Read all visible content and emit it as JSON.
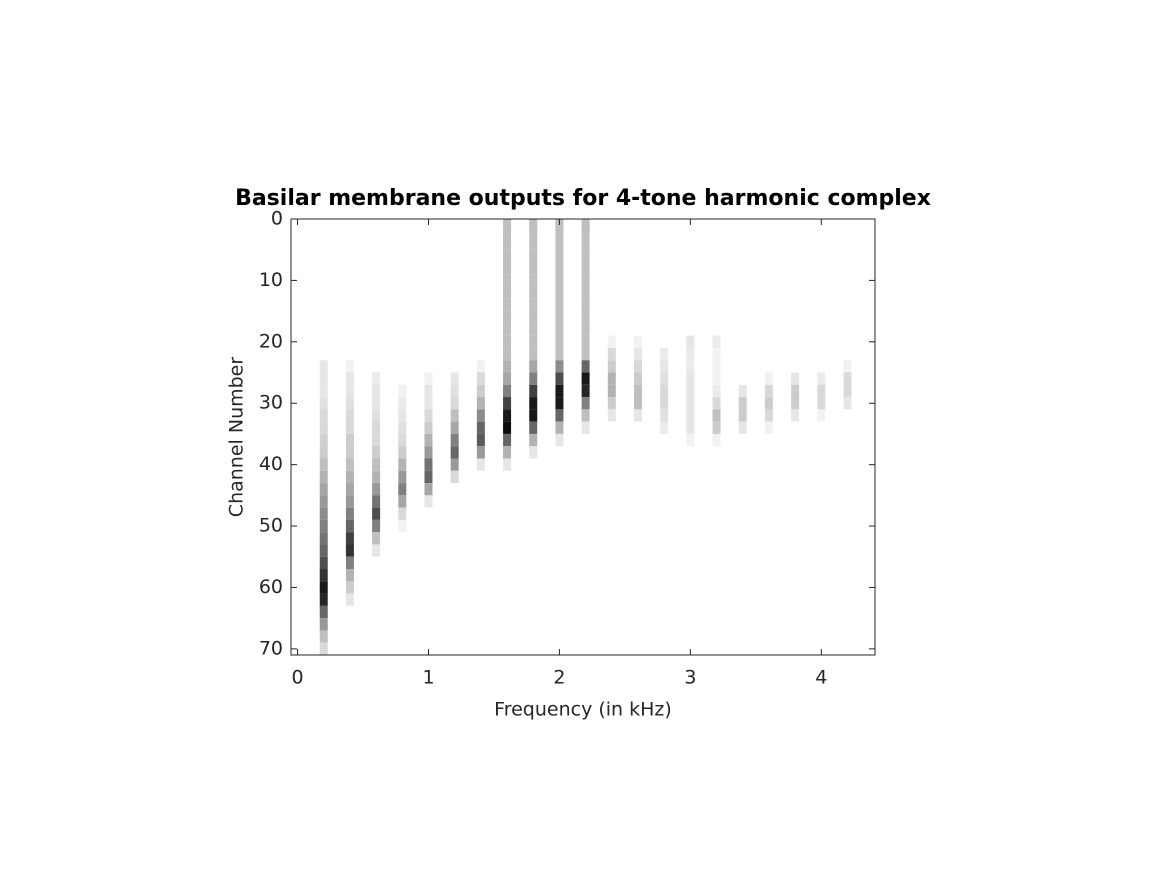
{
  "chart_data": {
    "type": "heatmap",
    "title": "Basilar membrane outputs for 4-tone harmonic complex",
    "xlabel": "Frequency (in kHz)",
    "ylabel": "Channel Number",
    "x": [
      0.2,
      0.4,
      0.6,
      0.8,
      1.0,
      1.2,
      1.4,
      1.6,
      1.8,
      2.0,
      2.2,
      2.4,
      2.6,
      2.8,
      3.0,
      3.2,
      3.4,
      3.6,
      3.8,
      4.0,
      4.2
    ],
    "y": [
      0,
      2,
      4,
      6,
      8,
      10,
      12,
      14,
      16,
      18,
      20,
      22,
      24,
      26,
      28,
      30,
      32,
      34,
      36,
      38,
      40,
      42,
      44,
      46,
      48,
      50,
      52,
      54,
      56,
      58,
      60,
      62,
      64,
      66,
      68,
      70
    ],
    "z": [
      [
        0,
        0,
        0,
        0,
        0,
        0,
        0,
        0,
        0,
        0,
        0,
        0,
        0.1,
        0.1,
        0.1,
        0.12,
        0.15,
        0.15,
        0.18,
        0.2,
        0.25,
        0.3,
        0.35,
        0.4,
        0.45,
        0.5,
        0.55,
        0.6,
        0.7,
        0.8,
        0.9,
        0.85,
        0.6,
        0.4,
        0.25,
        0.15
      ],
      [
        0,
        0,
        0,
        0,
        0,
        0,
        0,
        0,
        0,
        0,
        0,
        0,
        0.05,
        0.1,
        0.1,
        0.12,
        0.15,
        0.15,
        0.2,
        0.2,
        0.25,
        0.3,
        0.35,
        0.4,
        0.5,
        0.6,
        0.75,
        0.8,
        0.5,
        0.3,
        0.2,
        0.1,
        0,
        0,
        0,
        0
      ],
      [
        0,
        0,
        0,
        0,
        0,
        0,
        0,
        0,
        0,
        0,
        0,
        0,
        0,
        0.08,
        0.1,
        0.1,
        0.12,
        0.15,
        0.15,
        0.2,
        0.25,
        0.3,
        0.4,
        0.55,
        0.7,
        0.5,
        0.25,
        0.1,
        0,
        0,
        0,
        0,
        0,
        0,
        0,
        0
      ],
      [
        0,
        0,
        0,
        0,
        0,
        0,
        0,
        0,
        0,
        0,
        0,
        0,
        0,
        0,
        0.05,
        0.08,
        0.1,
        0.12,
        0.15,
        0.2,
        0.3,
        0.4,
        0.5,
        0.35,
        0.15,
        0.05,
        0,
        0,
        0,
        0,
        0,
        0,
        0,
        0,
        0,
        0
      ],
      [
        0,
        0,
        0,
        0,
        0,
        0,
        0,
        0,
        0,
        0,
        0,
        0,
        0,
        0.05,
        0.1,
        0.1,
        0.15,
        0.2,
        0.3,
        0.4,
        0.55,
        0.6,
        0.35,
        0.1,
        0,
        0,
        0,
        0,
        0,
        0,
        0,
        0,
        0,
        0,
        0,
        0
      ],
      [
        0,
        0,
        0,
        0,
        0,
        0,
        0,
        0,
        0,
        0,
        0,
        0,
        0,
        0.1,
        0.12,
        0.15,
        0.25,
        0.35,
        0.5,
        0.6,
        0.4,
        0.15,
        0,
        0,
        0,
        0,
        0,
        0,
        0,
        0,
        0,
        0,
        0,
        0,
        0,
        0
      ],
      [
        0,
        0,
        0,
        0,
        0,
        0,
        0,
        0,
        0,
        0,
        0,
        0,
        0.05,
        0.15,
        0.2,
        0.3,
        0.45,
        0.6,
        0.65,
        0.4,
        0.1,
        0,
        0,
        0,
        0,
        0,
        0,
        0,
        0,
        0,
        0,
        0,
        0,
        0,
        0,
        0
      ],
      [
        0.25,
        0.25,
        0.25,
        0.25,
        0.25,
        0.25,
        0.25,
        0.25,
        0.25,
        0.25,
        0.25,
        0.25,
        0.3,
        0.35,
        0.5,
        0.75,
        0.9,
        0.95,
        0.6,
        0.3,
        0.1,
        0,
        0,
        0,
        0,
        0,
        0,
        0,
        0,
        0,
        0,
        0,
        0,
        0,
        0,
        0
      ],
      [
        0.25,
        0.25,
        0.25,
        0.25,
        0.25,
        0.25,
        0.25,
        0.25,
        0.25,
        0.25,
        0.25,
        0.25,
        0.35,
        0.5,
        0.75,
        0.9,
        0.9,
        0.6,
        0.3,
        0.1,
        0,
        0,
        0,
        0,
        0,
        0,
        0,
        0,
        0,
        0,
        0,
        0,
        0,
        0,
        0,
        0
      ],
      [
        0.25,
        0.25,
        0.25,
        0.25,
        0.25,
        0.25,
        0.25,
        0.25,
        0.25,
        0.25,
        0.25,
        0.25,
        0.45,
        0.7,
        0.9,
        0.9,
        0.6,
        0.3,
        0.1,
        0,
        0,
        0,
        0,
        0,
        0,
        0,
        0,
        0,
        0,
        0,
        0,
        0,
        0,
        0,
        0,
        0
      ],
      [
        0.25,
        0.25,
        0.25,
        0.25,
        0.25,
        0.25,
        0.25,
        0.25,
        0.25,
        0.25,
        0.25,
        0.25,
        0.6,
        0.9,
        0.85,
        0.5,
        0.25,
        0.1,
        0,
        0,
        0,
        0,
        0,
        0,
        0,
        0,
        0,
        0,
        0,
        0,
        0,
        0,
        0,
        0,
        0,
        0
      ],
      [
        0,
        0,
        0,
        0,
        0,
        0,
        0,
        0,
        0,
        0,
        0.05,
        0.15,
        0.2,
        0.3,
        0.3,
        0.2,
        0.1,
        0,
        0,
        0,
        0,
        0,
        0,
        0,
        0,
        0,
        0,
        0,
        0,
        0,
        0,
        0,
        0,
        0,
        0,
        0
      ],
      [
        0,
        0,
        0,
        0,
        0,
        0,
        0,
        0,
        0,
        0,
        0.05,
        0.1,
        0.15,
        0.2,
        0.25,
        0.25,
        0.1,
        0,
        0,
        0,
        0,
        0,
        0,
        0,
        0,
        0,
        0,
        0,
        0,
        0,
        0,
        0,
        0,
        0,
        0,
        0
      ],
      [
        0,
        0,
        0,
        0,
        0,
        0,
        0,
        0,
        0,
        0,
        0,
        0.08,
        0.1,
        0.12,
        0.15,
        0.15,
        0.12,
        0.08,
        0,
        0,
        0,
        0,
        0,
        0,
        0,
        0,
        0,
        0,
        0,
        0,
        0,
        0,
        0,
        0,
        0,
        0
      ],
      [
        0,
        0,
        0,
        0,
        0,
        0,
        0,
        0,
        0,
        0,
        0.1,
        0.08,
        0.08,
        0.1,
        0.1,
        0.1,
        0.1,
        0.1,
        0.05,
        0,
        0,
        0,
        0,
        0,
        0,
        0,
        0,
        0,
        0,
        0,
        0,
        0,
        0,
        0,
        0,
        0
      ],
      [
        0,
        0,
        0,
        0,
        0,
        0,
        0,
        0,
        0,
        0,
        0.08,
        0.05,
        0.05,
        0.05,
        0.08,
        0.15,
        0.25,
        0.2,
        0.05,
        0,
        0,
        0,
        0,
        0,
        0,
        0,
        0,
        0,
        0,
        0,
        0,
        0,
        0,
        0,
        0,
        0
      ],
      [
        0,
        0,
        0,
        0,
        0,
        0,
        0,
        0,
        0,
        0,
        0,
        0,
        0,
        0,
        0.1,
        0.2,
        0.2,
        0.1,
        0,
        0,
        0,
        0,
        0,
        0,
        0,
        0,
        0,
        0,
        0,
        0,
        0,
        0,
        0,
        0,
        0,
        0
      ],
      [
        0,
        0,
        0,
        0,
        0,
        0,
        0,
        0,
        0,
        0,
        0,
        0,
        0,
        0.05,
        0.15,
        0.2,
        0.15,
        0.05,
        0,
        0,
        0,
        0,
        0,
        0,
        0,
        0,
        0,
        0,
        0,
        0,
        0,
        0,
        0,
        0,
        0,
        0
      ],
      [
        0,
        0,
        0,
        0,
        0,
        0,
        0,
        0,
        0,
        0,
        0,
        0,
        0,
        0.1,
        0.2,
        0.2,
        0.1,
        0,
        0,
        0,
        0,
        0,
        0,
        0,
        0,
        0,
        0,
        0,
        0,
        0,
        0,
        0,
        0,
        0,
        0,
        0
      ],
      [
        0,
        0,
        0,
        0,
        0,
        0,
        0,
        0,
        0,
        0,
        0,
        0,
        0,
        0.08,
        0.15,
        0.15,
        0.05,
        0,
        0,
        0,
        0,
        0,
        0,
        0,
        0,
        0,
        0,
        0,
        0,
        0,
        0,
        0,
        0,
        0,
        0,
        0
      ],
      [
        0,
        0,
        0,
        0,
        0,
        0,
        0,
        0,
        0,
        0,
        0,
        0,
        0.05,
        0.15,
        0.15,
        0.1,
        0,
        0,
        0,
        0,
        0,
        0,
        0,
        0,
        0,
        0,
        0,
        0,
        0,
        0,
        0,
        0,
        0,
        0,
        0,
        0
      ]
    ],
    "xlim": [
      -0.05,
      4.41
    ],
    "xticks": [
      0,
      1,
      2,
      3,
      4
    ],
    "ylim": [
      0,
      71
    ],
    "yticks": [
      0,
      10,
      20,
      30,
      40,
      50,
      60,
      70
    ],
    "y_reversed": true
  }
}
